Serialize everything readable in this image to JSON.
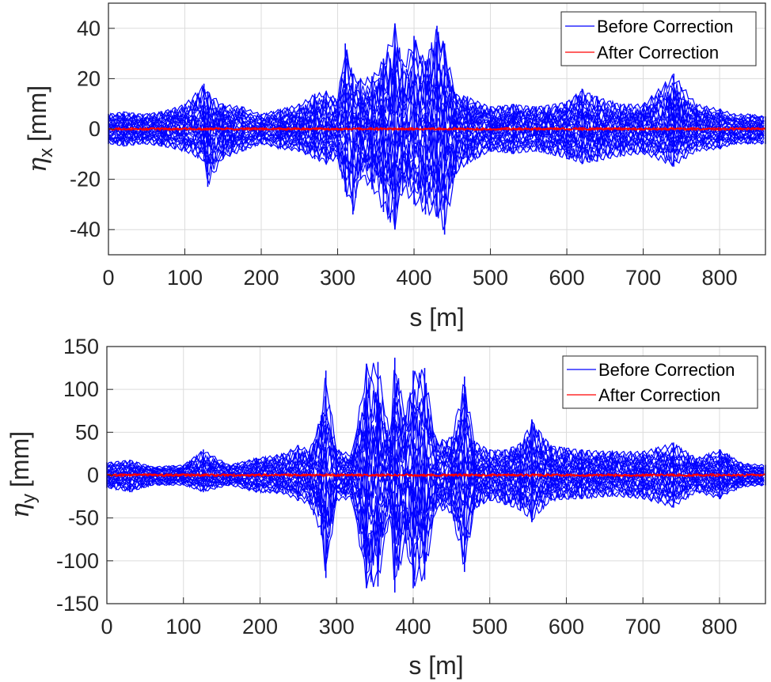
{
  "chart_data": [
    {
      "type": "line",
      "title": "",
      "ylabel_symbol": "η",
      "ylabel_sub": "x",
      "ylabel_unit": "[mm]",
      "xlabel": "s [m]",
      "xlim": [
        0,
        860
      ],
      "ylim": [
        -50,
        50
      ],
      "xticks": [
        0,
        100,
        200,
        300,
        400,
        500,
        600,
        700,
        800
      ],
      "yticks": [
        -40,
        -20,
        0,
        20,
        40
      ],
      "grid": true,
      "legend_position": "top-right",
      "series": [
        {
          "name": "Before Correction",
          "color": "#0000ff",
          "x": [
            0,
            20,
            45,
            70,
            100,
            125,
            130,
            150,
            175,
            200,
            225,
            250,
            270,
            285,
            300,
            310,
            320,
            330,
            345,
            360,
            375,
            385,
            400,
            415,
            430,
            440,
            455,
            470,
            500,
            530,
            560,
            600,
            620,
            640,
            670,
            700,
            740,
            770,
            800,
            820,
            840,
            860
          ],
          "upper": [
            6,
            7,
            6,
            7,
            10,
            18,
            15,
            10,
            9,
            6,
            8,
            10,
            14,
            15,
            12,
            34,
            22,
            20,
            21,
            28,
            42,
            26,
            37,
            27,
            41,
            34,
            14,
            13,
            9,
            10,
            9,
            11,
            16,
            13,
            10,
            10,
            22,
            10,
            8,
            6,
            6,
            5
          ],
          "lower": [
            -6,
            -7,
            -6,
            -7,
            -9,
            -13,
            -23,
            -12,
            -9,
            -6,
            -8,
            -9,
            -12,
            -14,
            -12,
            -25,
            -34,
            -20,
            -24,
            -33,
            -40,
            -25,
            -30,
            -34,
            -35,
            -42,
            -18,
            -14,
            -9,
            -10,
            -9,
            -12,
            -14,
            -13,
            -11,
            -10,
            -15,
            -9,
            -8,
            -6,
            -6,
            -6
          ]
        },
        {
          "name": "After Correction",
          "color": "#ff0000",
          "amplitude": 0.5
        }
      ]
    },
    {
      "type": "line",
      "title": "",
      "ylabel_symbol": "η",
      "ylabel_sub": "y",
      "ylabel_unit": "[mm]",
      "xlabel": "s [m]",
      "xlim": [
        0,
        860
      ],
      "ylim": [
        -150,
        150
      ],
      "xticks": [
        0,
        100,
        200,
        300,
        400,
        500,
        600,
        700,
        800
      ],
      "yticks": [
        -150,
        -100,
        -50,
        0,
        50,
        100,
        150
      ],
      "grid": true,
      "legend_position": "top-right",
      "series": [
        {
          "name": "Before Correction",
          "color": "#0000ff",
          "x": [
            0,
            30,
            60,
            100,
            126,
            160,
            195,
            230,
            250,
            265,
            280,
            286,
            300,
            320,
            339,
            354,
            370,
            376,
            390,
            400,
            415,
            430,
            450,
            467,
            480,
            500,
            520,
            540,
            555,
            580,
            620,
            660,
            700,
            740,
            770,
            800,
            810,
            830,
            860
          ],
          "upper": [
            15,
            18,
            10,
            12,
            30,
            12,
            20,
            25,
            35,
            30,
            70,
            122,
            30,
            25,
            130,
            132,
            45,
            137,
            70,
            122,
            125,
            40,
            45,
            115,
            40,
            30,
            30,
            38,
            65,
            35,
            30,
            28,
            28,
            38,
            20,
            30,
            25,
            14,
            12
          ],
          "lower": [
            -15,
            -20,
            -12,
            -12,
            -20,
            -12,
            -20,
            -22,
            -30,
            -35,
            -70,
            -120,
            -30,
            -28,
            -132,
            -130,
            -45,
            -137,
            -80,
            -132,
            -122,
            -40,
            -45,
            -113,
            -40,
            -30,
            -35,
            -42,
            -55,
            -30,
            -28,
            -25,
            -28,
            -38,
            -20,
            -28,
            -22,
            -14,
            -12
          ]
        },
        {
          "name": "After Correction",
          "color": "#ff0000",
          "amplitude": 1.5
        }
      ]
    }
  ]
}
